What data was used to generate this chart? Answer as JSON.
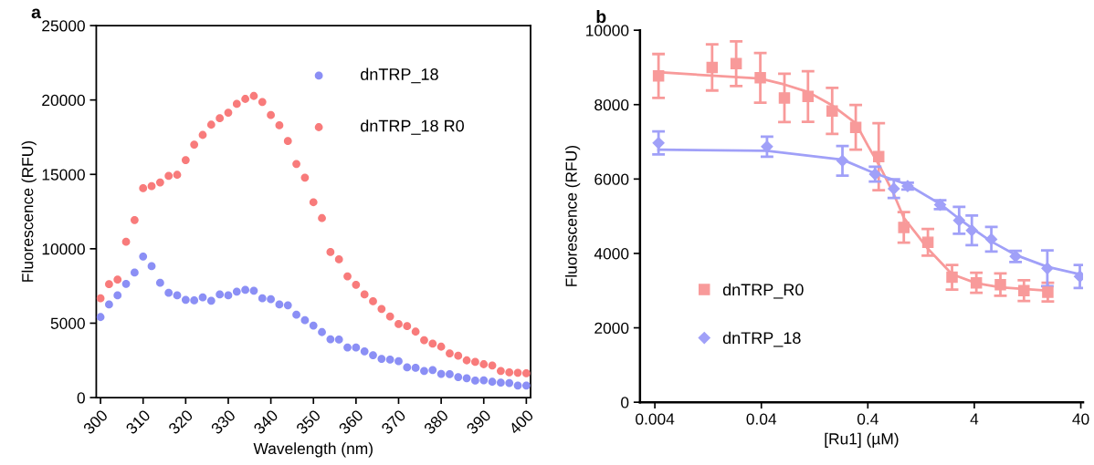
{
  "chart_data": [
    {
      "type": "scatter",
      "annotations": [
        "a"
      ],
      "xlabel": "Wavelength (nm)",
      "ylabel": "Fluorescence (RFU)",
      "xlim": [
        299,
        401
      ],
      "xticks": [
        300,
        310,
        320,
        330,
        340,
        350,
        360,
        370,
        380,
        390,
        400
      ],
      "ylim": [
        0,
        25000
      ],
      "yticks": [
        0,
        5000,
        10000,
        15000,
        20000,
        25000
      ],
      "marker": "circle",
      "legend": "top right",
      "grid": false,
      "x": [
        300,
        302,
        304,
        306,
        308,
        310,
        312,
        314,
        316,
        318,
        320,
        322,
        324,
        326,
        328,
        330,
        332,
        334,
        336,
        338,
        340,
        342,
        344,
        346,
        348,
        350,
        352,
        354,
        356,
        358,
        360,
        362,
        364,
        366,
        368,
        370,
        372,
        374,
        376,
        378,
        380,
        382,
        384,
        386,
        388,
        390,
        392,
        394,
        396,
        398,
        400
      ],
      "series": [
        {
          "name": "dnTRP_18",
          "color": "#8b8ff5",
          "values": [
            5410,
            6260,
            6870,
            7640,
            8400,
            9480,
            8830,
            7710,
            7040,
            6870,
            6570,
            6530,
            6730,
            6510,
            6930,
            6870,
            7120,
            7240,
            7180,
            6670,
            6610,
            6260,
            6200,
            5570,
            5200,
            4840,
            4400,
            3920,
            3900,
            3370,
            3360,
            3110,
            2850,
            2600,
            2550,
            2440,
            2030,
            2000,
            1790,
            1850,
            1590,
            1570,
            1380,
            1300,
            1140,
            1160,
            1060,
            1000,
            980,
            810,
            810
          ]
        },
        {
          "name": "dnTRP_18 R0",
          "color": "#f87b7b",
          "values": [
            6670,
            7620,
            7930,
            10470,
            11930,
            14070,
            14210,
            14460,
            14900,
            14970,
            15960,
            17000,
            17650,
            18340,
            18770,
            19150,
            19740,
            20070,
            20270,
            19870,
            18990,
            18300,
            17240,
            15700,
            14780,
            13130,
            12060,
            9780,
            9290,
            8150,
            7580,
            6930,
            6470,
            5960,
            5450,
            4940,
            4800,
            4430,
            3860,
            3620,
            3420,
            2970,
            2810,
            2500,
            2400,
            2240,
            2160,
            1790,
            1690,
            1670,
            1630
          ]
        }
      ]
    },
    {
      "type": "scatter",
      "annotations": [
        "b"
      ],
      "xlabel": "[Ru1] (µM)",
      "ylabel": "Fluorescence (RFU)",
      "log": "x",
      "xlim": [
        0.0029,
        42
      ],
      "xticks": [
        0.004,
        0.04,
        0.4,
        4,
        40
      ],
      "ylim": [
        0,
        10000
      ],
      "yticks": [
        0,
        2000,
        4000,
        6000,
        8000,
        10000
      ],
      "legend": "bottom left",
      "grid": false,
      "series": [
        {
          "name": "dnTRP_R0",
          "color": "#f89a9a",
          "marker": "square",
          "x": [
            0.00433,
            0.0138,
            0.0232,
            0.0391,
            0.0659,
            0.1097,
            0.185,
            0.308,
            0.506,
            0.871,
            1.466,
            2.47,
            4.18,
            7.03,
            11.7,
            19.6
          ],
          "values": [
            8770,
            9000,
            9100,
            8720,
            8180,
            8220,
            7830,
            7390,
            6600,
            4700,
            4300,
            3360,
            3210,
            3160,
            3000,
            2960
          ],
          "errors": [
            590,
            620,
            600,
            670,
            650,
            680,
            620,
            600,
            900,
            410,
            360,
            330,
            270,
            300,
            280,
            250
          ]
        },
        {
          "name": "dnTRP_18",
          "color": "#a0a0f8",
          "marker": "diamond",
          "x": [
            0.00433,
            0.0452,
            0.231,
            0.468,
            0.702,
            0.946,
            1.91,
            2.88,
            3.79,
            5.78,
            9.76,
            19.4,
            39.2
          ],
          "values": [
            6970,
            6870,
            6490,
            6130,
            5740,
            5810,
            5310,
            4890,
            4620,
            4380,
            3920,
            3600,
            3380
          ],
          "errors": [
            310,
            270,
            400,
            200,
            250,
            90,
            120,
            360,
            400,
            330,
            150,
            480,
            310
          ]
        },
        {
          "type": "line",
          "color": "#f89a9a",
          "x": [
            0.00433,
            0.039,
            0.066,
            0.11,
            0.185,
            0.308,
            0.4,
            0.53,
            0.7,
            0.87,
            1.2,
            1.47,
            2.47,
            4.18,
            7.03,
            19.6
          ],
          "values": [
            8870,
            8700,
            8540,
            8340,
            7980,
            7500,
            6900,
            6290,
            5600,
            4960,
            4450,
            4120,
            3440,
            3200,
            3090,
            3000
          ]
        },
        {
          "type": "line",
          "color": "#a0a0f8",
          "x": [
            0.00433,
            0.045,
            0.231,
            0.468,
            0.946,
            1.91,
            2.88,
            3.79,
            5.78,
            9.76,
            19.4,
            39.2
          ],
          "values": [
            6790,
            6760,
            6520,
            6150,
            5850,
            5330,
            4930,
            4680,
            4320,
            3960,
            3640,
            3440
          ]
        }
      ]
    }
  ]
}
